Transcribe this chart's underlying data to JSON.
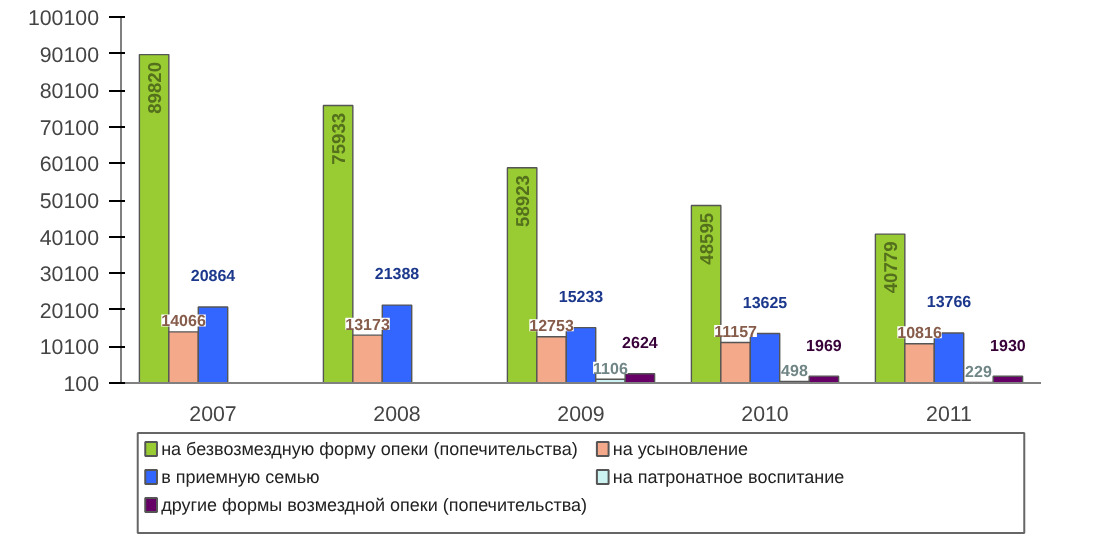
{
  "chart_data": {
    "type": "bar",
    "categories": [
      "2007",
      "2008",
      "2009",
      "2010",
      "2011"
    ],
    "series": [
      {
        "name": "на безвозмездную форму опеки (попечительства)",
        "color": "#99cc33",
        "values": [
          89820,
          75933,
          58923,
          48595,
          40779
        ]
      },
      {
        "name": "на усыновление",
        "color": "#f4a98a",
        "values": [
          14066,
          13173,
          12753,
          11157,
          10816
        ]
      },
      {
        "name": "в приемную семью",
        "color": "#3366ff",
        "values": [
          20864,
          21388,
          15233,
          13625,
          13766
        ]
      },
      {
        "name": "на патронатное воспитание",
        "color": "#ccf2f2",
        "values": [
          null,
          null,
          1106,
          498,
          229
        ]
      },
      {
        "name": "другие формы возмездной опеки (попечительства)",
        "color": "#660066",
        "values": [
          null,
          null,
          2624,
          1969,
          1930
        ]
      }
    ],
    "ylim": [
      100,
      100100
    ],
    "yticks": [
      100,
      10100,
      20100,
      30100,
      40100,
      50100,
      60100,
      70100,
      80100,
      90100,
      100100
    ],
    "data_labels": true,
    "grid": false,
    "legend": "bottom"
  }
}
